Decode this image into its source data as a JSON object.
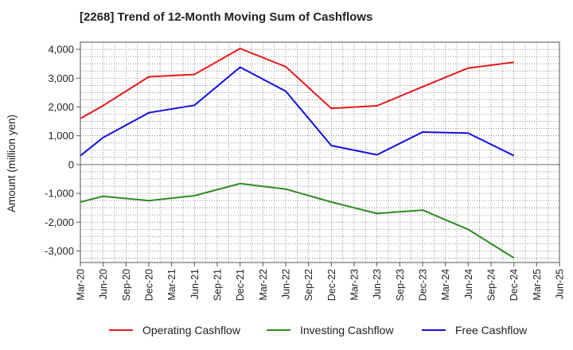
{
  "chart_data": {
    "type": "line",
    "title": "[2268]  Trend of 12-Month Moving Sum of Cashflows",
    "ylabel": "Amount (million yen)",
    "xlabel": "",
    "categories": [
      "Mar-20",
      "Jun-20",
      "Sep-20",
      "Dec-20",
      "Mar-21",
      "Jun-21",
      "Sep-21",
      "Dec-21",
      "Mar-22",
      "Jun-22",
      "Sep-22",
      "Dec-22",
      "Mar-23",
      "Jun-23",
      "Sep-23",
      "Dec-23",
      "Mar-24",
      "Jun-24",
      "Sep-24",
      "Dec-24",
      "Mar-25",
      "Jun-25"
    ],
    "ylim": [
      -3400,
      4250
    ],
    "yticks": [
      4000,
      3000,
      2000,
      1000,
      0,
      -1000,
      -2000,
      -3000
    ],
    "ytick_labels": [
      "4,000",
      "3,000",
      "2,000",
      "1,000",
      "0",
      "-1,000",
      "-2,000",
      "-3,000"
    ],
    "grid": true,
    "legend_position": "bottom",
    "series": [
      {
        "name": "Operating Cashflow",
        "color": "#e41a1c",
        "values": [
          1600,
          2050,
          null,
          3050,
          null,
          3130,
          null,
          4030,
          null,
          3400,
          null,
          1950,
          null,
          2040,
          null,
          2700,
          null,
          3350,
          null,
          3550,
          null,
          null
        ]
      },
      {
        "name": "Investing Cashflow",
        "color": "#2e8b22",
        "values": [
          -1300,
          -1100,
          null,
          -1250,
          null,
          -1080,
          null,
          -660,
          null,
          -850,
          null,
          -1300,
          null,
          -1700,
          null,
          -1580,
          null,
          -2250,
          null,
          -3240,
          null,
          null
        ]
      },
      {
        "name": "Free Cashflow",
        "color": "#1010dd",
        "values": [
          310,
          940,
          null,
          1800,
          null,
          2060,
          null,
          3380,
          null,
          2550,
          null,
          660,
          null,
          340,
          null,
          1130,
          null,
          1090,
          null,
          310,
          null,
          null
        ]
      }
    ]
  }
}
